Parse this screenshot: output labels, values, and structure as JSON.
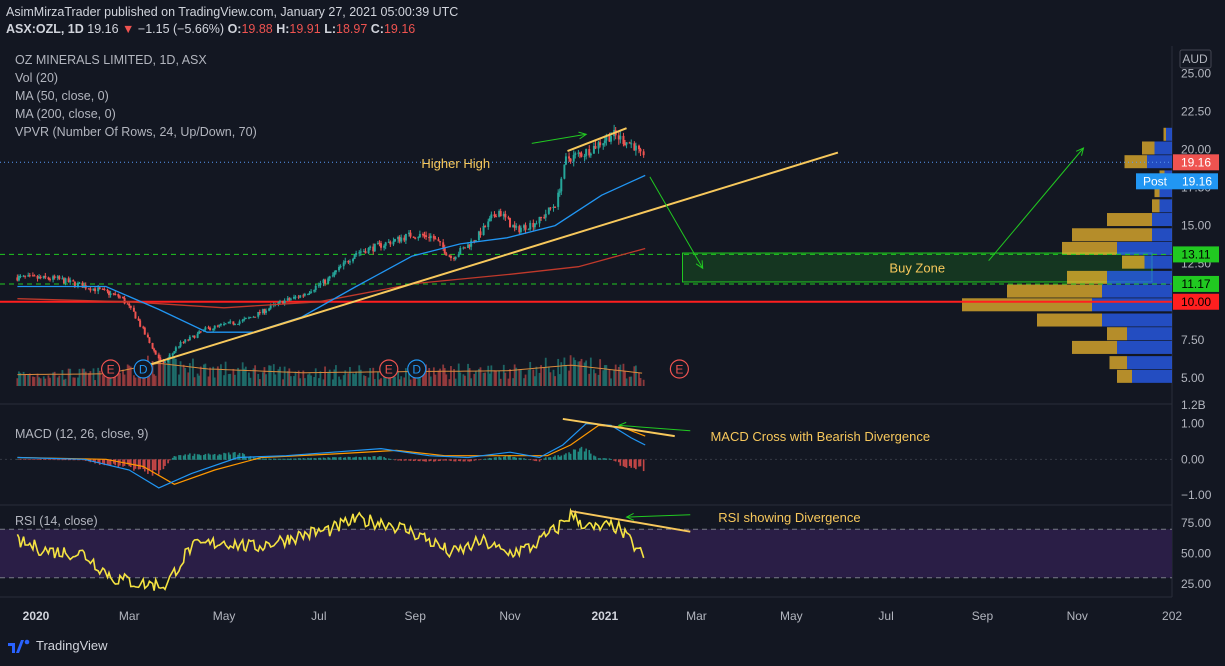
{
  "header": {
    "published": "AsimMirzaTrader published on TradingView.com, January 27, 2021 05:00:39 UTC",
    "symbol": "ASX:OZL, 1D",
    "price": "19.16",
    "change_arrow": "▼",
    "change": "−1.15 (−5.66%)",
    "o_label": "O:",
    "o": "19.88",
    "h_label": "H:",
    "h": "19.91",
    "l_label": "L:",
    "l": "18.97",
    "c_label": "C:",
    "c": "19.16"
  },
  "legend": {
    "title": "OZ MINERALS LIMITED, 1D, ASX",
    "vol": "Vol (20)",
    "ma50": "MA (50, close, 0)",
    "ma200": "MA (200, close, 0)",
    "vpvr": "VPVR (Number Of Rows, 24, Up/Down, 70)",
    "macd": "MACD (12, 26, close, 9)",
    "rsi": "RSI (14, close)"
  },
  "brand": "TradingView",
  "colors": {
    "background": "#131722",
    "up": "#26a69a",
    "down": "#ef5350",
    "ma50": "#2196f3",
    "ma200": "#c0392b",
    "trend": "#f7c85c",
    "arrow": "#21c921",
    "macd": "#2196f3",
    "signal": "#ff9800",
    "rsi": "#f5e342",
    "rsi_band": "#2a1e46"
  },
  "chart_data": {
    "type": "candlestick",
    "currency": "AUD",
    "price_axis": {
      "ticks": [
        "25.00",
        "22.50",
        "20.00",
        "17.50",
        "15.00",
        "12.50",
        "10.00",
        "7.50",
        "5.00"
      ],
      "ylim": [
        4.4,
        26.8
      ]
    },
    "volume_axis": {
      "tick": "1.2B"
    },
    "x_axis": {
      "ticks": [
        "2020",
        "Mar",
        "May",
        "Jul",
        "Sep",
        "Nov",
        "2021",
        "Mar",
        "May",
        "Jul",
        "Sep",
        "Nov",
        "202"
      ],
      "bold": [
        "2020",
        "2021"
      ]
    },
    "price_path": [
      [
        "2019-12-20",
        11.6
      ],
      [
        "2020-01-15",
        11.5
      ],
      [
        "2020-02-10",
        10.8
      ],
      [
        "2020-02-25",
        10.3
      ],
      [
        "2020-03-05",
        9.2
      ],
      [
        "2020-03-16",
        7.0
      ],
      [
        "2020-03-23",
        5.9
      ],
      [
        "2020-04-03",
        7.2
      ],
      [
        "2020-04-20",
        8.2
      ],
      [
        "2020-05-15",
        8.8
      ],
      [
        "2020-06-08",
        10.0
      ],
      [
        "2020-06-20",
        10.4
      ],
      [
        "2020-07-08",
        11.5
      ],
      [
        "2020-07-25",
        13.2
      ],
      [
        "2020-08-10",
        13.7
      ],
      [
        "2020-08-30",
        14.4
      ],
      [
        "2020-09-12",
        14.3
      ],
      [
        "2020-09-25",
        12.9
      ],
      [
        "2020-10-10",
        14.1
      ],
      [
        "2020-10-25",
        16.0
      ],
      [
        "2020-11-05",
        14.7
      ],
      [
        "2020-11-20",
        15.3
      ],
      [
        "2020-12-01",
        16.5
      ],
      [
        "2020-12-08",
        19.4
      ],
      [
        "2020-12-20",
        19.8
      ],
      [
        "2021-01-06",
        21.0
      ],
      [
        "2021-01-20",
        20.3
      ],
      [
        "2021-01-27",
        19.16
      ]
    ],
    "last_price": 19.16,
    "post_price": 19.16,
    "ma50_path": [
      [
        "2019-12-20",
        11.0
      ],
      [
        "2020-02-15",
        11.0
      ],
      [
        "2020-03-20",
        9.5
      ],
      [
        "2020-04-20",
        8.0
      ],
      [
        "2020-05-20",
        8.0
      ],
      [
        "2020-06-20",
        9.0
      ],
      [
        "2020-07-25",
        11.0
      ],
      [
        "2020-08-30",
        13.0
      ],
      [
        "2020-09-30",
        13.8
      ],
      [
        "2020-10-30",
        14.2
      ],
      [
        "2020-11-30",
        15.0
      ],
      [
        "2020-12-30",
        17.0
      ],
      [
        "2021-01-27",
        18.3
      ]
    ],
    "ma200_path": [
      [
        "2019-12-20",
        10.2
      ],
      [
        "2020-03-01",
        10.0
      ],
      [
        "2020-05-01",
        9.6
      ],
      [
        "2020-07-01",
        10.0
      ],
      [
        "2020-09-01",
        11.2
      ],
      [
        "2020-11-01",
        11.8
      ],
      [
        "2020-12-15",
        12.3
      ],
      [
        "2021-01-27",
        13.5
      ]
    ],
    "volume_path": [
      [
        "2019-12-20",
        0.3
      ],
      [
        "2020-02-15",
        0.32
      ],
      [
        "2020-03-20",
        0.6
      ],
      [
        "2020-04-20",
        0.45
      ],
      [
        "2020-06-20",
        0.35
      ],
      [
        "2020-08-30",
        0.38
      ],
      [
        "2020-10-30",
        0.4
      ],
      [
        "2020-12-10",
        0.55
      ],
      [
        "2021-01-27",
        0.33
      ]
    ],
    "events": [
      {
        "date": "2020-02-18",
        "label": "E"
      },
      {
        "date": "2020-03-10",
        "label": "D"
      },
      {
        "date": "2020-08-15",
        "label": "E"
      },
      {
        "date": "2020-09-02",
        "label": "D"
      },
      {
        "date": "2021-02-18",
        "label": "E"
      }
    ],
    "horizontal_levels": [
      {
        "value": 13.11,
        "label": "13.11",
        "style": "dashed",
        "color": "#21c921"
      },
      {
        "value": 11.17,
        "label": "11.17",
        "style": "dashed",
        "color": "#21c921"
      },
      {
        "value": 10.0,
        "label": "10.00",
        "style": "solid",
        "color": "#ff1f1f"
      }
    ],
    "buy_zone": {
      "from_date": "2021-02-20",
      "to_date": "2021-12-31",
      "low": 11.3,
      "high": 13.2,
      "label": "Buy Zone"
    },
    "trendlines": [
      {
        "name": "uptrend",
        "from": [
          "2020-03-15",
          5.9
        ],
        "to": [
          "2021-05-31",
          19.8
        ]
      },
      {
        "name": "higher-high",
        "from": [
          "2020-12-08",
          19.9
        ],
        "to": [
          "2021-01-15",
          21.4
        ]
      }
    ],
    "annotations": [
      {
        "text": "Higher High",
        "date": "2020-09-05",
        "price": 19.1
      },
      {
        "text": "MACD Cross with Bearish Divergence",
        "date": "2021-03-10",
        "macd": 0.65
      },
      {
        "text": "RSI showing Divergence",
        "date": "2021-03-15",
        "rsi": 80
      }
    ],
    "arrows": [
      {
        "from": [
          "2020-11-15",
          20.4
        ],
        "to": [
          "2020-12-20",
          21.0
        ]
      },
      {
        "from": [
          "2021-01-30",
          18.2
        ],
        "to": [
          "2021-03-05",
          12.2
        ]
      },
      {
        "from": [
          "2021-09-05",
          12.7
        ],
        "to": [
          "2021-11-05",
          20.1
        ]
      },
      {
        "from": [
          "2021-02-25",
          0.8
        ],
        "to": [
          "2021-01-10",
          0.95
        ],
        "pane": "macd"
      },
      {
        "from": [
          "2021-02-25",
          82
        ],
        "to": [
          "2021-01-15",
          80
        ],
        "pane": "rsi"
      }
    ],
    "vpvr": [
      {
        "price": 21.0,
        "up": 0.12,
        "down": 0.05
      },
      {
        "price": 20.1,
        "up": 0.35,
        "down": 0.25
      },
      {
        "price": 19.2,
        "up": 0.5,
        "down": 0.45
      },
      {
        "price": 18.2,
        "up": 0.15,
        "down": 0.1
      },
      {
        "price": 17.3,
        "up": 0.25,
        "down": 0.1
      },
      {
        "price": 16.3,
        "up": 0.25,
        "down": 0.15
      },
      {
        "price": 15.4,
        "up": 0.4,
        "down": 0.9
      },
      {
        "price": 14.4,
        "up": 0.4,
        "down": 1.6
      },
      {
        "price": 13.5,
        "up": 1.1,
        "down": 1.1
      },
      {
        "price": 12.6,
        "up": 0.55,
        "down": 0.45
      },
      {
        "price": 11.6,
        "up": 1.3,
        "down": 0.8
      },
      {
        "price": 10.7,
        "up": 1.4,
        "down": 1.9
      },
      {
        "price": 9.8,
        "up": 1.6,
        "down": 2.6
      },
      {
        "price": 8.8,
        "up": 1.4,
        "down": 1.3
      },
      {
        "price": 7.9,
        "up": 0.9,
        "down": 0.4
      },
      {
        "price": 7.0,
        "up": 1.1,
        "down": 0.9
      },
      {
        "price": 6.0,
        "up": 0.9,
        "down": 0.35
      },
      {
        "price": 5.1,
        "up": 0.8,
        "down": 0.3
      }
    ],
    "macd": {
      "axis_ticks": [
        "1.00",
        "0.00",
        "−1.00"
      ],
      "ylim": [
        -1.25,
        1.1
      ],
      "macd_path": [
        [
          "2019-12-20",
          0.05
        ],
        [
          "2020-02-01",
          0.0
        ],
        [
          "2020-03-01",
          -0.3
        ],
        [
          "2020-03-20",
          -0.8
        ],
        [
          "2020-04-10",
          -0.4
        ],
        [
          "2020-05-10",
          0.05
        ],
        [
          "2020-06-10",
          0.1
        ],
        [
          "2020-07-10",
          0.2
        ],
        [
          "2020-08-10",
          0.3
        ],
        [
          "2020-09-10",
          0.1
        ],
        [
          "2020-10-05",
          0.05
        ],
        [
          "2020-11-01",
          0.2
        ],
        [
          "2020-11-20",
          0.05
        ],
        [
          "2020-12-05",
          0.4
        ],
        [
          "2020-12-20",
          1.0
        ],
        [
          "2021-01-05",
          0.95
        ],
        [
          "2021-01-18",
          0.6
        ],
        [
          "2021-01-27",
          0.4
        ]
      ],
      "signal_path": [
        [
          "2019-12-20",
          0.05
        ],
        [
          "2020-02-15",
          0.0
        ],
        [
          "2020-03-10",
          -0.2
        ],
        [
          "2020-03-30",
          -0.7
        ],
        [
          "2020-04-25",
          -0.3
        ],
        [
          "2020-05-25",
          0.05
        ],
        [
          "2020-07-10",
          0.15
        ],
        [
          "2020-08-20",
          0.25
        ],
        [
          "2020-09-20",
          0.1
        ],
        [
          "2020-10-20",
          0.1
        ],
        [
          "2020-11-25",
          0.1
        ],
        [
          "2020-12-10",
          0.4
        ],
        [
          "2020-12-28",
          0.95
        ],
        [
          "2021-01-12",
          0.9
        ],
        [
          "2021-01-27",
          0.65
        ]
      ],
      "divergence_line": {
        "from": [
          "2020-12-05",
          1.13
        ],
        "to": [
          "2021-02-15",
          0.65
        ]
      }
    },
    "rsi": {
      "axis_ticks": [
        "75.00",
        "50.00",
        "25.00"
      ],
      "ylim": [
        15,
        90
      ],
      "bands": [
        30,
        70
      ],
      "rsi_path": [
        [
          "2019-12-20",
          60
        ],
        [
          "2020-01-10",
          52
        ],
        [
          "2020-02-01",
          50
        ],
        [
          "2020-02-20",
          30
        ],
        [
          "2020-03-10",
          25
        ],
        [
          "2020-03-25",
          24
        ],
        [
          "2020-04-10",
          55
        ],
        [
          "2020-05-01",
          60
        ],
        [
          "2020-05-20",
          55
        ],
        [
          "2020-06-20",
          65
        ],
        [
          "2020-07-10",
          70
        ],
        [
          "2020-07-25",
          78
        ],
        [
          "2020-08-15",
          75
        ],
        [
          "2020-09-05",
          65
        ],
        [
          "2020-09-25",
          50
        ],
        [
          "2020-10-15",
          60
        ],
        [
          "2020-10-30",
          50
        ],
        [
          "2020-11-15",
          55
        ],
        [
          "2020-12-01",
          70
        ],
        [
          "2020-12-10",
          82
        ],
        [
          "2020-12-25",
          70
        ],
        [
          "2021-01-08",
          73
        ],
        [
          "2021-01-18",
          60
        ],
        [
          "2021-01-27",
          47
        ]
      ],
      "divergence_line": {
        "from": [
          "2020-12-10",
          85
        ],
        "to": [
          "2021-02-25",
          68
        ]
      }
    }
  }
}
